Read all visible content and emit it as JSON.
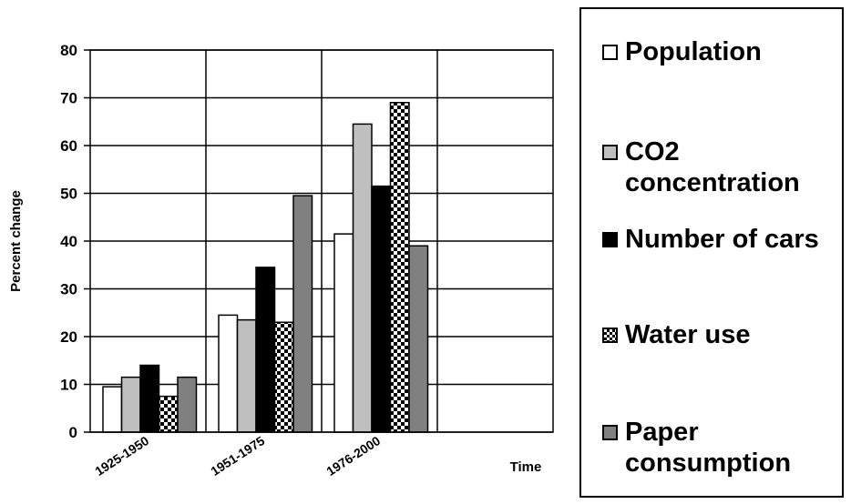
{
  "chart_data": {
    "type": "bar",
    "title": "",
    "xlabel": "Time",
    "ylabel": "Percent change",
    "ylim": [
      0,
      80
    ],
    "yticks": [
      "0",
      "10",
      "20",
      "30",
      "40",
      "50",
      "60",
      "70",
      "80"
    ],
    "grid": true,
    "legend_position": "right",
    "categories": [
      "1925-1950",
      "1951-1975",
      "1976-2000",
      ""
    ],
    "series": [
      {
        "name": "Population",
        "values": [
          9.5,
          24.5,
          41.5,
          null
        ],
        "fill": "#ffffff",
        "pattern": "none"
      },
      {
        "name": "CO2 concentration",
        "values": [
          11.5,
          23.5,
          64.5,
          null
        ],
        "fill": "#bfbfbf",
        "pattern": "none"
      },
      {
        "name": "Number of cars",
        "values": [
          14,
          34.5,
          51.5,
          null
        ],
        "fill": "#000000",
        "pattern": "none"
      },
      {
        "name": "Water use",
        "values": [
          7.5,
          23,
          69,
          null
        ],
        "fill": "#ffffff",
        "pattern": "checker"
      },
      {
        "name": "Paper consumption",
        "values": [
          11.5,
          49.5,
          39,
          null
        ],
        "fill": "#808080",
        "pattern": "none"
      }
    ]
  }
}
